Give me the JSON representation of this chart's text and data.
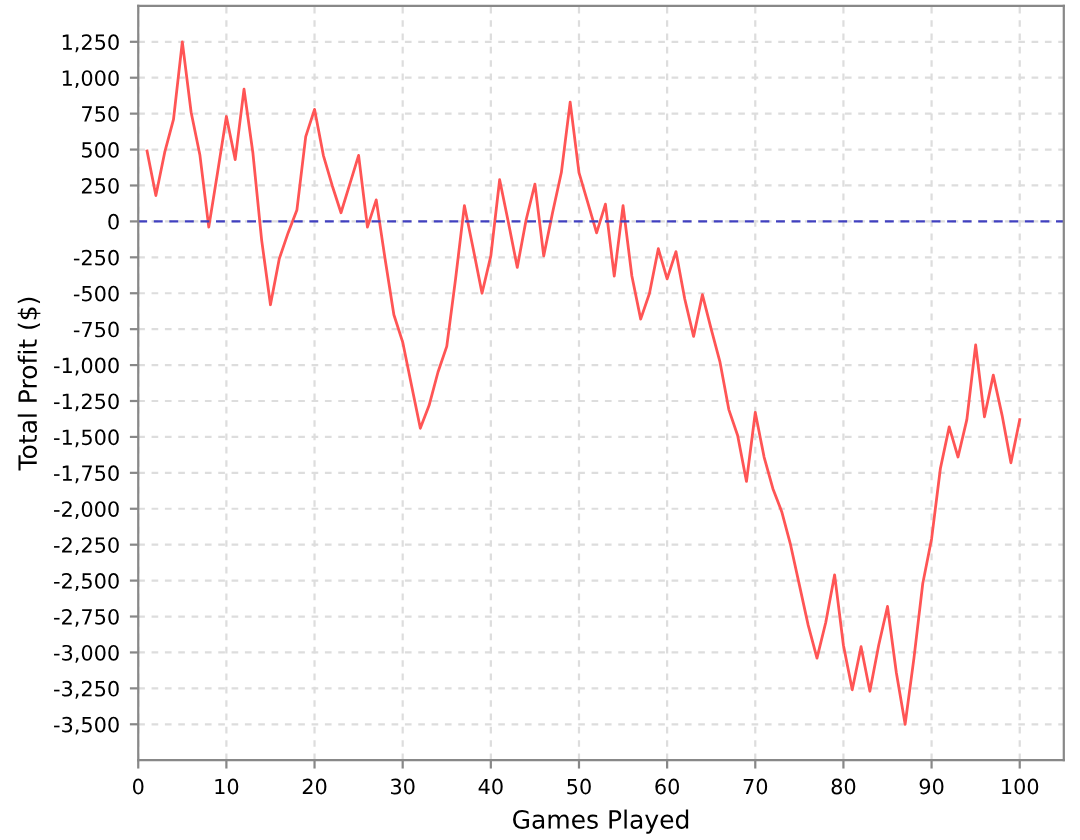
{
  "chart_data": {
    "type": "line",
    "xlabel": "Games Played",
    "ylabel": "Total Profit ($)",
    "x": [
      1,
      2,
      3,
      4,
      5,
      6,
      7,
      8,
      9,
      10,
      11,
      12,
      13,
      14,
      15,
      16,
      17,
      18,
      19,
      20,
      21,
      22,
      23,
      24,
      25,
      26,
      27,
      28,
      29,
      30,
      31,
      32,
      33,
      34,
      35,
      36,
      37,
      38,
      39,
      40,
      41,
      42,
      43,
      44,
      45,
      46,
      47,
      48,
      49,
      50,
      51,
      52,
      53,
      54,
      55,
      56,
      57,
      58,
      59,
      60,
      61,
      62,
      63,
      64,
      65,
      66,
      67,
      68,
      69,
      70,
      71,
      72,
      73,
      74,
      75,
      76,
      77,
      78,
      79,
      80,
      81,
      82,
      83,
      84,
      85,
      86,
      87,
      88,
      89,
      90,
      91,
      92,
      93,
      94,
      95,
      96,
      97,
      98,
      99,
      100
    ],
    "series": [
      {
        "color": "#ff5555",
        "values": [
          490,
          180,
          480,
          710,
          1250,
          760,
          460,
          -40,
          340,
          730,
          430,
          920,
          480,
          -130,
          -580,
          -260,
          -80,
          80,
          590,
          780,
          460,
          250,
          60,
          260,
          460,
          -40,
          150,
          -260,
          -650,
          -840,
          -1140,
          -1440,
          -1280,
          -1050,
          -870,
          -400,
          110,
          -190,
          -500,
          -240,
          290,
          -10,
          -320,
          10,
          260,
          -240,
          60,
          340,
          830,
          340,
          130,
          -80,
          120,
          -380,
          110,
          -380,
          -680,
          -500,
          -190,
          -400,
          -210,
          -540,
          -800,
          -510,
          -750,
          -980,
          -1310,
          -1490,
          -1810,
          -1330,
          -1640,
          -1860,
          -2020,
          -2250,
          -2530,
          -2810,
          -3040,
          -2790,
          -2460,
          -2950,
          -3260,
          -2960,
          -3270,
          -2950,
          -2680,
          -3140,
          -3500,
          -3040,
          -2520,
          -2210,
          -1720,
          -1430,
          -1640,
          -1380,
          -860,
          -1360,
          -1070,
          -1350,
          -1680,
          -1380
        ]
      }
    ],
    "xlim": [
      0,
      105
    ],
    "xticks": [
      0,
      10,
      20,
      30,
      40,
      50,
      60,
      70,
      80,
      90,
      100
    ],
    "ylim": [
      -3750,
      1500
    ],
    "yticks": [
      {
        "value": -3500,
        "label": "-3,500"
      },
      {
        "value": -3250,
        "label": "-3,250"
      },
      {
        "value": -3000,
        "label": "-3,000"
      },
      {
        "value": -2750,
        "label": "-2,750"
      },
      {
        "value": -2500,
        "label": "-2,500"
      },
      {
        "value": -2250,
        "label": "-2,250"
      },
      {
        "value": -2000,
        "label": "-2,000"
      },
      {
        "value": -1750,
        "label": "-1,750"
      },
      {
        "value": -1500,
        "label": "-1,500"
      },
      {
        "value": -1250,
        "label": "-1,250"
      },
      {
        "value": -1000,
        "label": "-1,000"
      },
      {
        "value": -750,
        "label": "-750"
      },
      {
        "value": -500,
        "label": "-500"
      },
      {
        "value": -250,
        "label": "-250"
      },
      0,
      250,
      500,
      750,
      {
        "value": 1000,
        "label": "1,000"
      },
      {
        "value": 1250,
        "label": "1,250"
      }
    ],
    "ref_lines": [
      {
        "axis": "y",
        "value": 0,
        "color": "#4040c0",
        "line_style": "dashed"
      }
    ],
    "grid": true,
    "legend": false,
    "marker": "none",
    "line_style": "solid"
  }
}
